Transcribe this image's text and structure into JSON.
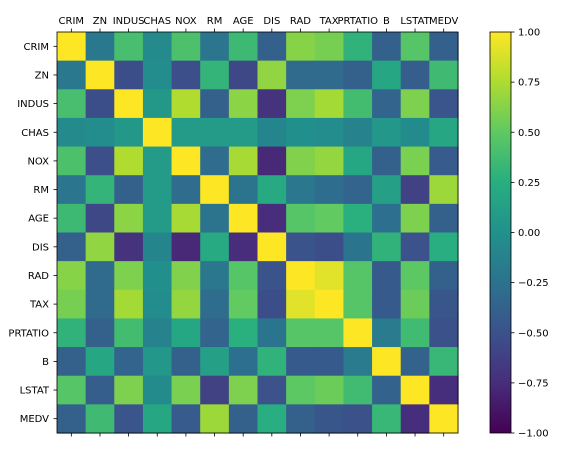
{
  "chart_data": {
    "type": "heatmap",
    "title": "",
    "xlabel": "",
    "ylabel": "",
    "x_labels": [
      "CRIM",
      "ZN",
      "INDUS",
      "CHAS",
      "NOX",
      "RM",
      "AGE",
      "DIS",
      "RAD",
      "TAX",
      "PRTATIO",
      "B",
      "LSTAT",
      "MEDV"
    ],
    "y_labels": [
      "CRIM",
      "ZN",
      "INDUS",
      "CHAS",
      "NOX",
      "RM",
      "AGE",
      "DIS",
      "RAD",
      "TAX",
      "PRTATIO",
      "B",
      "LSTAT",
      "MEDV"
    ],
    "x_axis_position": "top",
    "colormap": "viridis",
    "color_range": [
      -1.0,
      1.0
    ],
    "colorbar_ticks": [
      "1.00",
      "0.75",
      "0.50",
      "0.25",
      "0.00",
      "−0.25",
      "−0.50",
      "−0.75",
      "−1.00"
    ],
    "colorbar_tick_values": [
      1.0,
      0.75,
      0.5,
      0.25,
      0.0,
      -0.25,
      -0.5,
      -0.75,
      -1.0
    ],
    "grid": false,
    "matrix": [
      [
        1.0,
        -0.2,
        0.4,
        -0.06,
        0.42,
        -0.22,
        0.35,
        -0.38,
        0.63,
        0.58,
        0.29,
        -0.39,
        0.46,
        -0.39
      ],
      [
        -0.2,
        1.0,
        -0.53,
        -0.04,
        -0.52,
        0.31,
        -0.57,
        0.66,
        -0.31,
        -0.31,
        -0.39,
        0.18,
        -0.41,
        0.36
      ],
      [
        0.4,
        -0.53,
        1.0,
        0.06,
        0.76,
        -0.39,
        0.64,
        -0.71,
        0.6,
        0.72,
        0.38,
        -0.36,
        0.6,
        -0.48
      ],
      [
        -0.06,
        -0.04,
        0.06,
        1.0,
        0.09,
        0.09,
        0.09,
        -0.1,
        -0.01,
        -0.04,
        -0.12,
        0.05,
        -0.05,
        0.18
      ],
      [
        0.42,
        -0.52,
        0.76,
        0.09,
        1.0,
        -0.3,
        0.73,
        -0.77,
        0.61,
        0.67,
        0.19,
        -0.38,
        0.59,
        -0.43
      ],
      [
        -0.22,
        0.31,
        -0.39,
        0.09,
        -0.3,
        1.0,
        -0.24,
        0.21,
        -0.21,
        -0.29,
        -0.36,
        0.13,
        -0.61,
        0.7
      ],
      [
        0.35,
        -0.57,
        0.64,
        0.09,
        0.73,
        -0.24,
        1.0,
        -0.75,
        0.46,
        0.51,
        0.26,
        -0.27,
        0.6,
        -0.38
      ],
      [
        -0.38,
        0.66,
        -0.71,
        -0.1,
        -0.77,
        0.21,
        -0.75,
        1.0,
        -0.49,
        -0.53,
        -0.23,
        0.29,
        -0.5,
        0.25
      ],
      [
        0.63,
        -0.31,
        0.6,
        -0.01,
        0.61,
        -0.21,
        0.46,
        -0.49,
        1.0,
        0.91,
        0.46,
        -0.44,
        0.49,
        -0.38
      ],
      [
        0.58,
        -0.31,
        0.72,
        -0.04,
        0.67,
        -0.29,
        0.51,
        -0.53,
        0.91,
        1.0,
        0.46,
        -0.44,
        0.54,
        -0.47
      ],
      [
        0.29,
        -0.39,
        0.38,
        -0.12,
        0.19,
        -0.36,
        0.26,
        -0.23,
        0.46,
        0.46,
        1.0,
        -0.18,
        0.37,
        -0.51
      ],
      [
        -0.39,
        0.18,
        -0.36,
        0.05,
        -0.38,
        0.13,
        -0.27,
        0.29,
        -0.44,
        -0.44,
        -0.18,
        1.0,
        -0.37,
        0.33
      ],
      [
        0.46,
        -0.41,
        0.6,
        -0.05,
        0.59,
        -0.61,
        0.6,
        -0.5,
        0.49,
        0.54,
        0.37,
        -0.37,
        1.0,
        -0.74
      ],
      [
        -0.39,
        0.36,
        -0.48,
        0.18,
        -0.43,
        0.7,
        -0.38,
        0.25,
        -0.38,
        -0.47,
        -0.51,
        0.33,
        -0.74,
        1.0
      ]
    ]
  }
}
